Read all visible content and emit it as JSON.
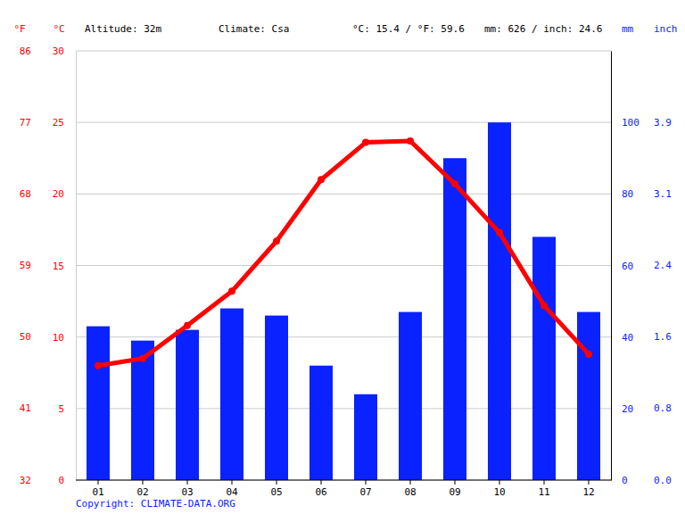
{
  "chart_data": {
    "type": "bar",
    "annotations": [
      "Altitude: 32m",
      "Climate: Csa",
      "°C: 15.4 / °F: 59.6",
      "mm: 626 / inch: 24.6"
    ],
    "copyright": "Copyright: CLIMATE-DATA.ORG",
    "categories": [
      "01",
      "02",
      "03",
      "04",
      "05",
      "06",
      "07",
      "08",
      "09",
      "10",
      "11",
      "12"
    ],
    "series": [
      {
        "type": "bar",
        "axis": "y2",
        "color": "#0a22ff",
        "values": [
          43,
          39,
          42,
          48,
          46,
          32,
          24,
          47,
          90,
          100,
          68,
          47
        ]
      },
      {
        "type": "line",
        "color": "#ff0000",
        "marker": "circle",
        "line_style": "solid",
        "values": [
          8.0,
          8.5,
          10.8,
          13.2,
          16.7,
          21.0,
          23.6,
          23.7,
          20.7,
          17.3,
          12.2,
          8.8
        ]
      }
    ],
    "y_label": "°C",
    "ylim": [
      0,
      30
    ],
    "yticks": [
      0,
      5,
      10,
      15,
      20,
      25,
      30
    ],
    "y3_label": "°F",
    "y3ticks": [
      {
        "value": 0,
        "label": "32"
      },
      {
        "value": 5,
        "label": "41"
      },
      {
        "value": 10,
        "label": "50"
      },
      {
        "value": 15,
        "label": "59"
      },
      {
        "value": 20,
        "label": "68"
      },
      {
        "value": 25,
        "label": "77"
      },
      {
        "value": 30,
        "label": "86"
      }
    ],
    "y2_label": "mm",
    "y2lim": [
      0,
      120
    ],
    "y2ticks": [
      0,
      20,
      40,
      60,
      80,
      100
    ],
    "y4_label": "inch",
    "y4ticks": [
      {
        "value": 0,
        "label": "0.0"
      },
      {
        "value": 20,
        "label": "0.8"
      },
      {
        "value": 40,
        "label": "1.6"
      },
      {
        "value": 60,
        "label": "2.4"
      },
      {
        "value": 80,
        "label": "3.1"
      },
      {
        "value": 100,
        "label": "3.9"
      }
    ],
    "grid": true
  }
}
